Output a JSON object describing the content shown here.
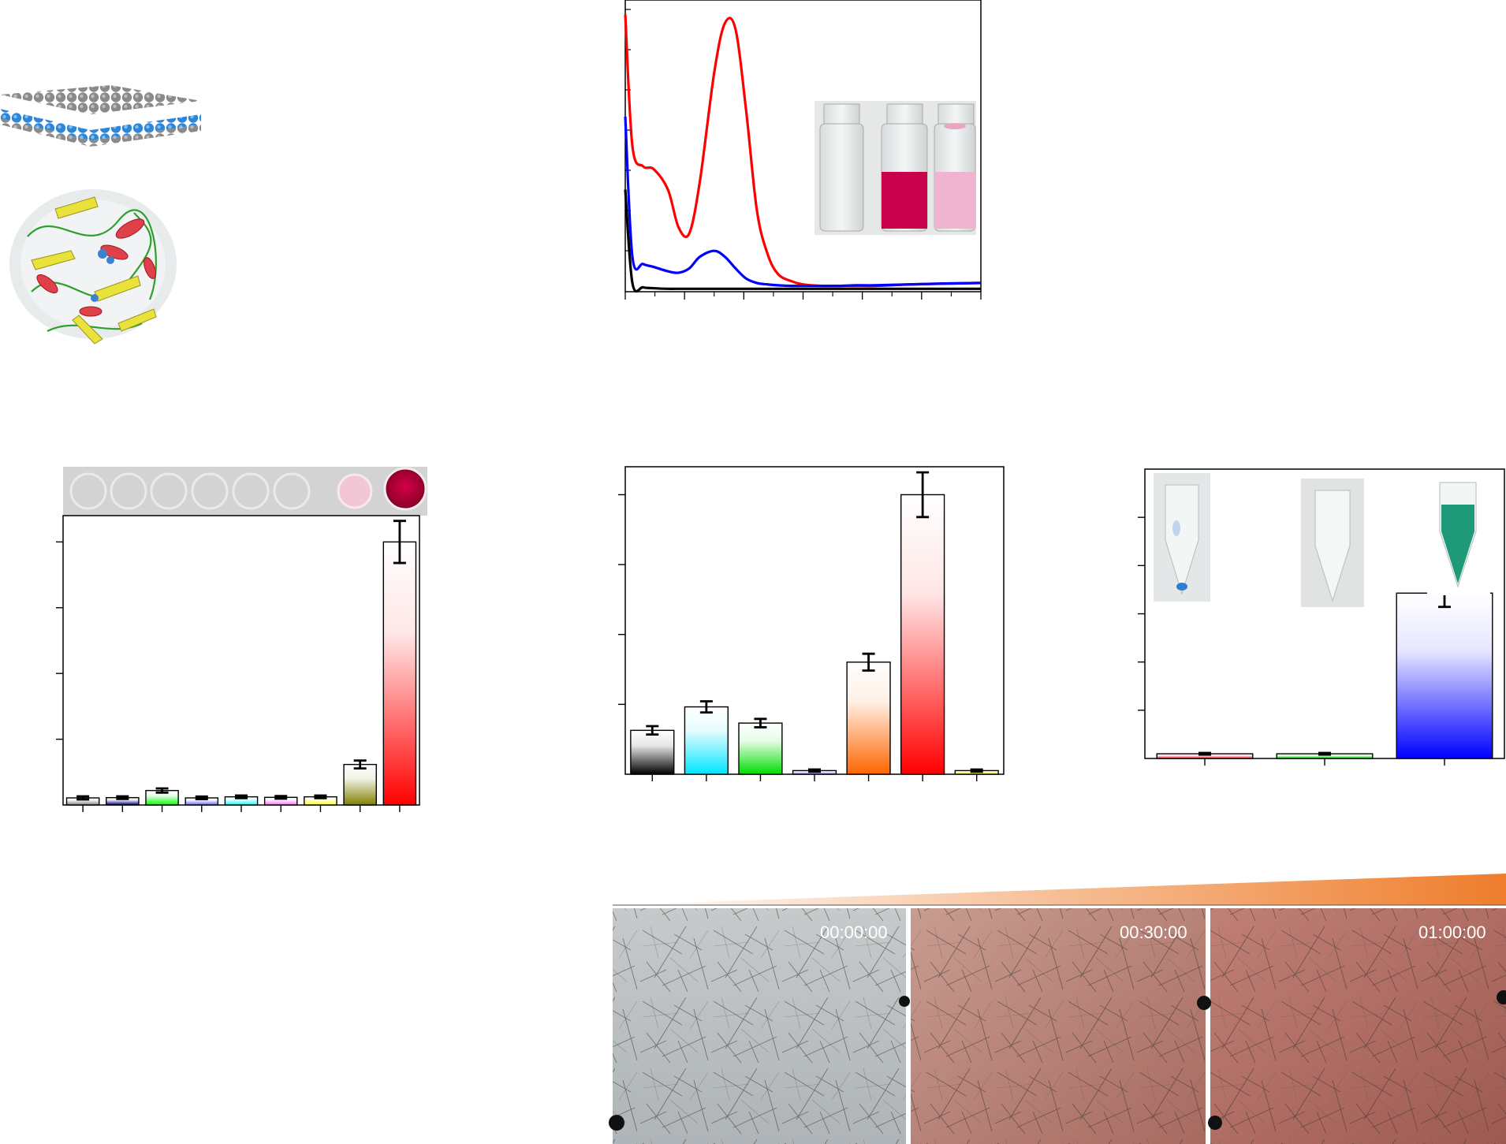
{
  "colors": {
    "red": "#ff0000",
    "blue": "#0000ff",
    "black": "#000000",
    "background": "#ffffff"
  },
  "timestamps": [
    "00:00:00",
    "00:30:00",
    "01:00:00"
  ],
  "chart_data": [
    {
      "id": "uv-vis-spectra",
      "type": "line",
      "x": [
        0,
        0.02,
        0.05,
        0.08,
        0.12,
        0.15,
        0.18,
        0.21,
        0.25,
        0.28,
        0.31,
        0.34,
        0.37,
        0.4,
        0.43,
        0.47,
        0.5,
        0.55,
        0.6,
        0.65,
        0.7,
        0.8,
        0.9,
        1.0
      ],
      "series": [
        {
          "color": "#ff0000",
          "values": [
            0.95,
            0.5,
            0.43,
            0.42,
            0.35,
            0.22,
            0.2,
            0.38,
            0.75,
            0.92,
            0.9,
            0.62,
            0.28,
            0.13,
            0.06,
            0.035,
            0.025,
            0.02,
            0.02,
            0.02,
            0.02,
            0.025,
            0.028,
            0.03
          ]
        },
        {
          "color": "#0000ff",
          "values": [
            0.6,
            0.12,
            0.095,
            0.085,
            0.07,
            0.065,
            0.08,
            0.12,
            0.14,
            0.12,
            0.08,
            0.045,
            0.03,
            0.025,
            0.022,
            0.02,
            0.02,
            0.02,
            0.02,
            0.022,
            0.022,
            0.025,
            0.028,
            0.03
          ]
        },
        {
          "color": "#000000",
          "values": [
            0.35,
            0.03,
            0.015,
            0.012,
            0.01,
            0.01,
            0.01,
            0.01,
            0.01,
            0.01,
            0.01,
            0.01,
            0.01,
            0.01,
            0.01,
            0.01,
            0.01,
            0.01,
            0.01,
            0.01,
            0.01,
            0.01,
            0.01,
            0.01
          ]
        }
      ],
      "xlim": [
        0,
        1
      ],
      "ylim": [
        0,
        1
      ],
      "inset": "photo of three vials: colorless, deep red, light pink"
    },
    {
      "id": "selectivity-bars",
      "type": "bar",
      "values": [
        0.027,
        0.028,
        0.055,
        0.027,
        0.031,
        0.029,
        0.031,
        0.154,
        1.0
      ],
      "errors": [
        0.006,
        0.005,
        0.008,
        0.005,
        0.005,
        0.005,
        0.005,
        0.015,
        0.08
      ],
      "colors": [
        "#808080",
        "#000080",
        "#00ff00",
        "#6666ff",
        "#00ffff",
        "#ff66ff",
        "#ffff00",
        "#808000",
        "#ff0000"
      ],
      "ylim": [
        0,
        1.1
      ],
      "inset": "strip of wells, last two pink and deep red"
    },
    {
      "id": "interference-bars",
      "type": "bar",
      "values": [
        0.157,
        0.241,
        0.183,
        0.013,
        0.401,
        1.0,
        0.013
      ],
      "errors": [
        0.015,
        0.02,
        0.015,
        0.004,
        0.03,
        0.08,
        0.004
      ],
      "colors": [
        "#000000",
        "#00e5ff",
        "#00dd00",
        "#8080ff",
        "#ff6600",
        "#ff0000",
        "#ffff00"
      ],
      "ylim": [
        0,
        1.1
      ]
    },
    {
      "id": "enzyme-bars",
      "type": "bar",
      "values": [
        0.017,
        0.017,
        0.6
      ],
      "errors": [
        0.003,
        0.003,
        0.05
      ],
      "colors": [
        "#ff3333",
        "#00dd00",
        "#0000ff"
      ],
      "ylim": [
        0,
        1.05
      ],
      "inset": "photos of three tubes: faint blue, colorless, teal"
    }
  ]
}
